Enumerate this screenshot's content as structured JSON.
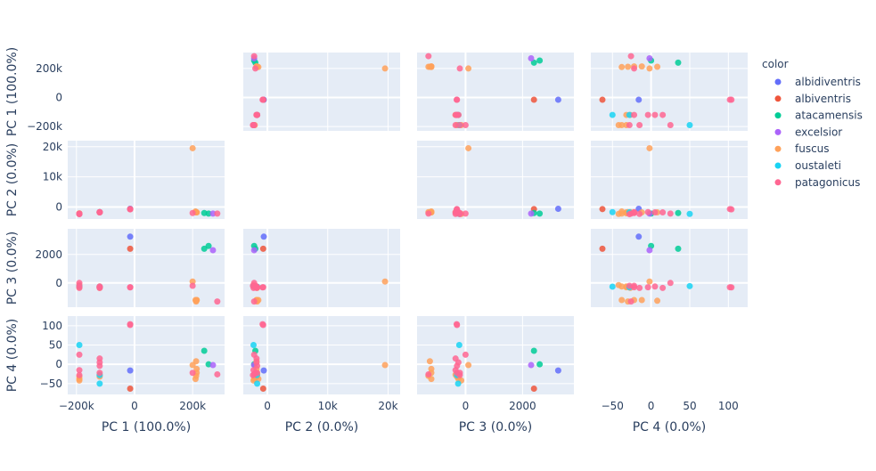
{
  "chart_data": {
    "type": "scatter",
    "subtype": "scatter-matrix",
    "title": "",
    "legend": {
      "title": "color",
      "placement": "right"
    },
    "dimensions": [
      {
        "key": "pc1",
        "label": "PC 1 (100.0%)",
        "range": [
          -230000,
          310000
        ],
        "ticks": [
          -200000,
          0,
          200000
        ],
        "tick_labels": [
          "−200k",
          "0",
          "200k"
        ]
      },
      {
        "key": "pc2",
        "label": "PC 2 (0.0%)",
        "range": [
          -4000,
          22000
        ],
        "ticks": [
          0,
          10000,
          20000
        ],
        "tick_labels": [
          "0",
          "10k",
          "20k"
        ]
      },
      {
        "key": "pc3",
        "label": "PC 3 (0.0%)",
        "range": [
          -1700,
          3800
        ],
        "ticks": [
          0,
          2000
        ],
        "tick_labels": [
          "0",
          "2000"
        ]
      },
      {
        "key": "pc4",
        "label": "PC 4 (0.0%)",
        "range": [
          -78,
          125
        ],
        "ticks": [
          -50,
          0,
          50,
          100
        ],
        "tick_labels": [
          "−50",
          "0",
          "50",
          "100"
        ]
      }
    ],
    "series": [
      {
        "name": "albidiventris",
        "color": "#636efa",
        "points": [
          [
            -15000,
            -600,
            3250,
            -16
          ]
        ]
      },
      {
        "name": "albiventris",
        "color": "#EF553B",
        "points": [
          [
            -15000,
            -700,
            2400,
            -63
          ]
        ]
      },
      {
        "name": "atacamensis",
        "color": "#00cc96",
        "points": [
          [
            240000,
            -2000,
            2400,
            35
          ],
          [
            255000,
            -2200,
            2600,
            0
          ]
        ]
      },
      {
        "name": "excelsior",
        "color": "#ab63fa",
        "points": [
          [
            270000,
            -2200,
            2300,
            -2
          ]
        ]
      },
      {
        "name": "fuscus",
        "color": "#FFA15A",
        "points": [
          [
            200000,
            19500,
            100,
            -2
          ],
          [
            210000,
            -1500,
            -1200,
            -38
          ],
          [
            212000,
            -1700,
            -1300,
            -30
          ],
          [
            212000,
            -1800,
            -1250,
            8
          ],
          [
            214000,
            -1800,
            -1200,
            -12
          ],
          [
            214000,
            -1800,
            -1200,
            -22
          ],
          [
            -190000,
            -2100,
            -300,
            -32
          ],
          [
            -190000,
            -2200,
            -250,
            -38
          ],
          [
            -120000,
            -1800,
            -250,
            -32
          ],
          [
            -190000,
            -2300,
            -150,
            -42
          ],
          [
            -120000,
            -1700,
            -350,
            -27
          ]
        ]
      },
      {
        "name": "oustaleti",
        "color": "#19d3f3",
        "points": [
          [
            -190000,
            -2300,
            -220,
            50
          ],
          [
            -120000,
            -1700,
            -260,
            -50
          ],
          [
            -120000,
            -1750,
            -300,
            -28
          ]
        ]
      },
      {
        "name": "patagonicus",
        "color": "#FF6692",
        "points": [
          [
            285000,
            -2200,
            -1300,
            -26
          ],
          [
            -15000,
            -700,
            -300,
            102
          ],
          [
            -15000,
            -800,
            -310,
            104
          ],
          [
            -120000,
            -1700,
            -300,
            -4
          ],
          [
            -120000,
            -1800,
            -250,
            5
          ],
          [
            -120000,
            -1800,
            -350,
            15
          ],
          [
            -190000,
            -2300,
            -350,
            -15
          ],
          [
            -190000,
            -2200,
            0,
            25
          ],
          [
            -190000,
            -2400,
            -200,
            -28
          ],
          [
            200000,
            -2000,
            -200,
            -22
          ],
          [
            -120000,
            -1700,
            -300,
            -22
          ]
        ]
      }
    ]
  }
}
